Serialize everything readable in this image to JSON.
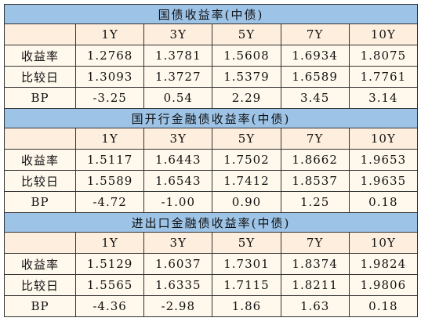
{
  "sections": [
    {
      "title": "国债收益率(中债)",
      "columns": [
        "1Y",
        "3Y",
        "5Y",
        "7Y",
        "10Y"
      ],
      "rows": [
        {
          "label": "收益率",
          "values": [
            "1.2768",
            "1.3781",
            "1.5608",
            "1.6934",
            "1.8075"
          ]
        },
        {
          "label": "比较日",
          "values": [
            "1.3093",
            "1.3727",
            "1.5379",
            "1.6589",
            "1.7761"
          ]
        },
        {
          "label": "BP",
          "values": [
            "-3.25",
            "0.54",
            "2.29",
            "3.45",
            "3.14"
          ]
        }
      ]
    },
    {
      "title": "国开行金融债收益率(中债)",
      "columns": [
        "1Y",
        "3Y",
        "5Y",
        "7Y",
        "10Y"
      ],
      "rows": [
        {
          "label": "收益率",
          "values": [
            "1.5117",
            "1.6443",
            "1.7502",
            "1.8662",
            "1.9653"
          ]
        },
        {
          "label": "比较日",
          "values": [
            "1.5589",
            "1.6543",
            "1.7412",
            "1.8537",
            "1.9635"
          ]
        },
        {
          "label": "BP",
          "values": [
            "-4.72",
            "-1.00",
            "0.90",
            "1.25",
            "0.18"
          ]
        }
      ]
    },
    {
      "title": "进出口金融债收益率(中债)",
      "columns": [
        "1Y",
        "3Y",
        "5Y",
        "7Y",
        "10Y"
      ],
      "rows": [
        {
          "label": "收益率",
          "values": [
            "1.5129",
            "1.6037",
            "1.7301",
            "1.8374",
            "1.9824"
          ]
        },
        {
          "label": "比较日",
          "values": [
            "1.5565",
            "1.6335",
            "1.7115",
            "1.8211",
            "1.9806"
          ]
        },
        {
          "label": "BP",
          "values": [
            "-4.36",
            "-2.98",
            "1.86",
            "1.63",
            "0.18"
          ]
        }
      ]
    }
  ]
}
